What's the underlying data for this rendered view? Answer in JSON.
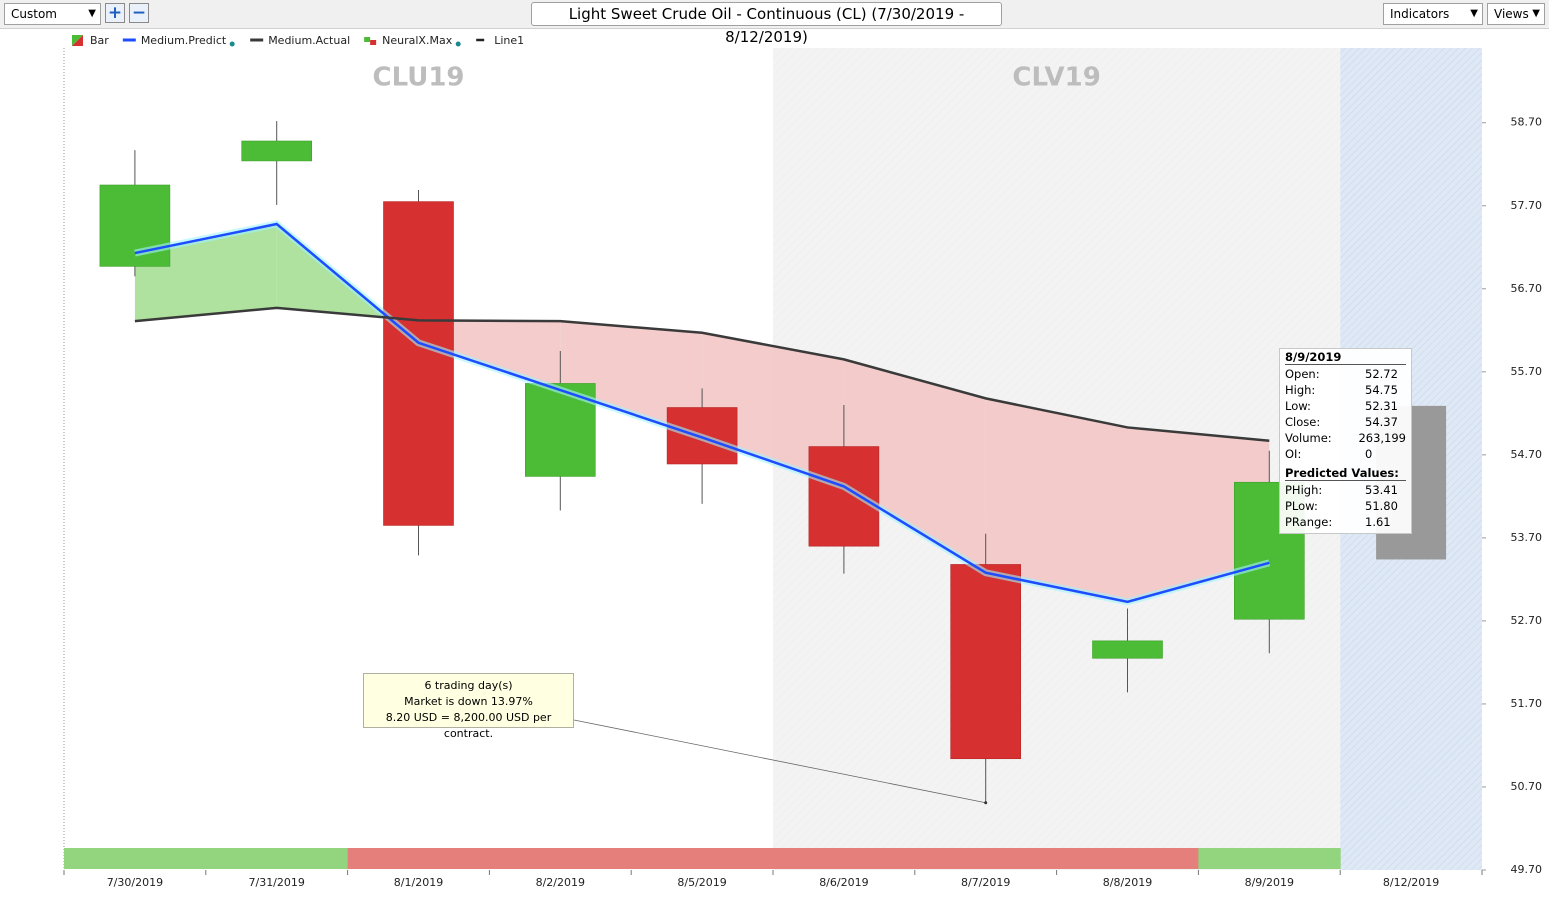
{
  "toolbar": {
    "preset": "Custom",
    "indicators": "Indicators",
    "views": "Views"
  },
  "chart_data": {
    "type": "candlestick",
    "title": "Light Sweet Crude Oil - Continuous (CL) (7/30/2019 - 8/12/2019)",
    "categories": [
      "7/30/2019",
      "7/31/2019",
      "8/1/2019",
      "8/2/2019",
      "8/5/2019",
      "8/6/2019",
      "8/7/2019",
      "8/8/2019",
      "8/9/2019",
      "8/12/2019"
    ],
    "ylim": [
      49.7,
      59.6
    ],
    "yticks": [
      {
        "value": 58.7,
        "label": "58.70"
      },
      {
        "value": 57.7,
        "label": "57.70"
      },
      {
        "value": 56.7,
        "label": "56.70"
      },
      {
        "value": 55.7,
        "label": "55.70"
      },
      {
        "value": 54.7,
        "label": "54.70"
      },
      {
        "value": 53.7,
        "label": "53.70"
      },
      {
        "value": 52.7,
        "label": "52.70"
      },
      {
        "value": 51.7,
        "label": "51.70"
      },
      {
        "value": 50.7,
        "label": "50.70"
      },
      {
        "value": 49.7,
        "label": "49.70"
      }
    ],
    "candles": {
      "name": "Bar",
      "up_color": "#4cbb35",
      "down_color": "#d63031",
      "open": [
        56.97,
        58.24,
        57.75,
        54.44,
        55.27,
        54.8,
        53.38,
        52.25,
        52.72,
        null
      ],
      "high": [
        58.37,
        58.72,
        57.89,
        55.95,
        55.5,
        55.3,
        53.75,
        52.85,
        54.75,
        null
      ],
      "low": [
        56.85,
        57.71,
        53.49,
        54.03,
        54.11,
        53.27,
        50.51,
        51.84,
        52.31,
        null
      ],
      "close": [
        57.95,
        58.48,
        53.85,
        55.56,
        54.59,
        53.6,
        51.04,
        52.46,
        54.37,
        null
      ]
    },
    "series": [
      {
        "name": "Medium.Predict",
        "color": "#1e4cff",
        "values": [
          57.13,
          57.48,
          56.05,
          55.48,
          54.91,
          54.32,
          53.28,
          52.93,
          53.4,
          null
        ]
      },
      {
        "name": "Medium.Actual",
        "color": "#3a3a3a",
        "values": [
          56.31,
          56.47,
          56.32,
          56.31,
          56.17,
          55.85,
          55.38,
          55.03,
          54.87,
          null
        ]
      }
    ],
    "fill_colors": {
      "above": "#a5df94",
      "below": "#f3c6c6"
    },
    "projection": {
      "name": "NeuralX.Max",
      "color": "#999999",
      "high": [
        null,
        null,
        null,
        null,
        null,
        null,
        null,
        null,
        null,
        55.29
      ],
      "low": [
        null,
        null,
        null,
        null,
        null,
        null,
        null,
        null,
        null,
        53.44
      ]
    },
    "legend_only": [
      {
        "name": "Line1",
        "color": "#222222"
      }
    ],
    "contracts": [
      {
        "label": "CLU19",
        "span": [
          "7/30/2019",
          "8/5/2019"
        ],
        "background": "#ffffff"
      },
      {
        "label": "CLV19",
        "span": [
          "8/6/2019",
          "8/9/2019"
        ],
        "background": "#f3f3f3"
      }
    ],
    "forecast_shading": {
      "from": "8/12/2019",
      "color": "#dfe9f5"
    },
    "trend_bar": [
      "#92d57e",
      "#92d57e",
      "#e57f7c",
      "#e57f7c",
      "#e57f7c",
      "#e57f7c",
      "#e57f7c",
      "#e57f7c",
      "#92d57e",
      null
    ],
    "annotation": {
      "lines": [
        "6 trading day(s)",
        "Market is down 13.97%",
        "8.20 USD = 8,200.00 USD per contract."
      ],
      "target": "8/7/2019"
    },
    "tooltip": {
      "title": "8/9/2019",
      "rows": [
        [
          "Open:",
          "52.72"
        ],
        [
          "High:",
          "54.75"
        ],
        [
          "Low:",
          "52.31"
        ],
        [
          "Close:",
          "54.37"
        ],
        [
          "Volume:",
          "263,199"
        ],
        [
          "OI:",
          "0"
        ]
      ],
      "section": "Predicted Values:",
      "predicted": [
        [
          "PHigh:",
          "53.41"
        ],
        [
          "PLow:",
          "51.80"
        ],
        [
          "PRange:",
          "1.61"
        ]
      ]
    }
  }
}
